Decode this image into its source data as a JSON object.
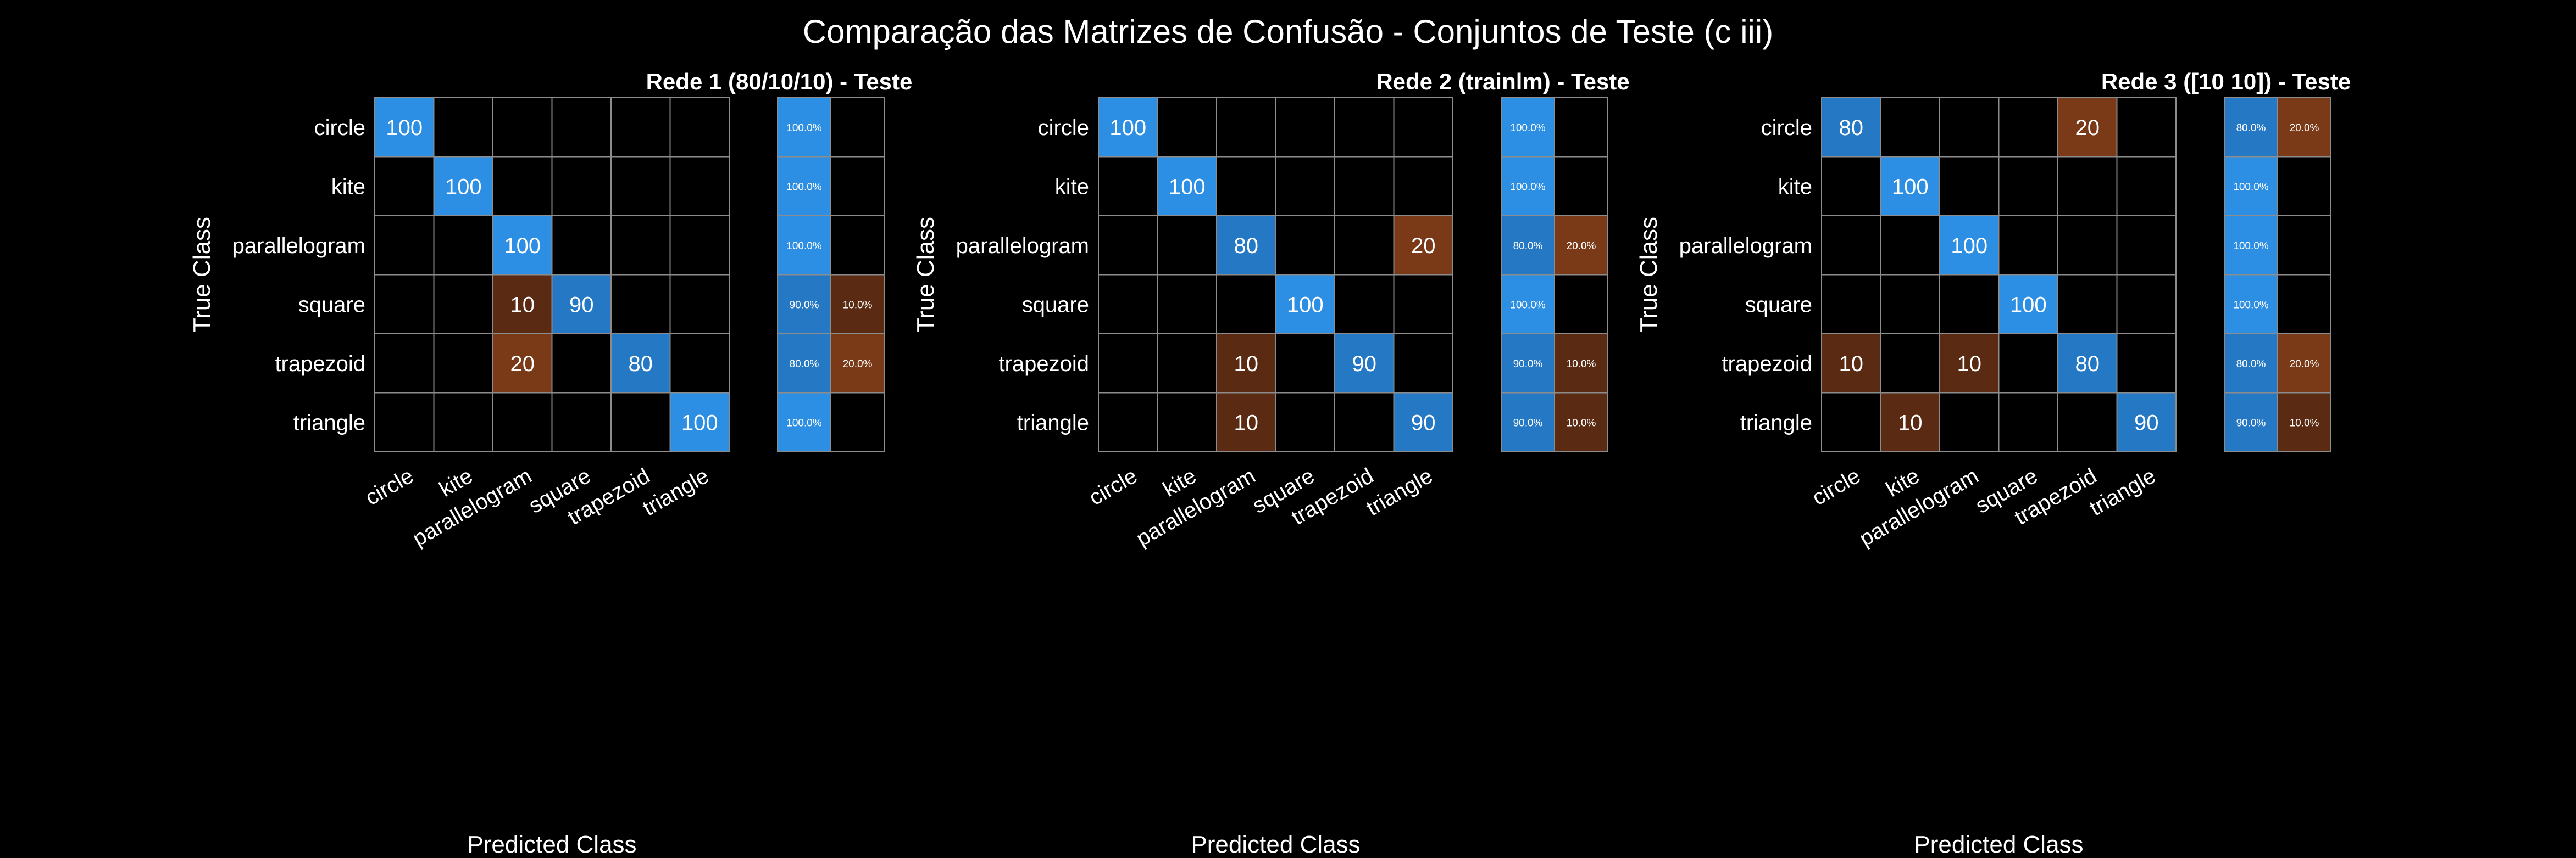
{
  "figure": {
    "title": "Comparação das Matrizes de Confusão - Conjuntos de Teste (c iii)"
  },
  "colors": {
    "background": "#000000",
    "text": "#ffffff",
    "grid": "#8c8c8c",
    "correct_light": "#2d8fe3",
    "correct_mid": "#2478c4",
    "error_dark": "#5a2a12",
    "error_mid": "#7a3a18"
  },
  "chart_data": [
    {
      "type": "heatmap",
      "title": "Rede 1 (80/10/10) - Teste",
      "xlabel": "Predicted Class",
      "ylabel": "True Class",
      "classes": [
        "circle",
        "kite",
        "parallelogram",
        "square",
        "trapezoid",
        "triangle"
      ],
      "matrix": [
        [
          100,
          0,
          0,
          0,
          0,
          0
        ],
        [
          0,
          100,
          0,
          0,
          0,
          0
        ],
        [
          0,
          0,
          100,
          0,
          0,
          0
        ],
        [
          0,
          0,
          10,
          90,
          0,
          0
        ],
        [
          0,
          0,
          20,
          0,
          80,
          0
        ],
        [
          0,
          0,
          0,
          0,
          0,
          100
        ]
      ],
      "row_summary": [
        [
          "100.0%",
          ""
        ],
        [
          "100.0%",
          ""
        ],
        [
          "100.0%",
          ""
        ],
        [
          "90.0%",
          "10.0%"
        ],
        [
          "80.0%",
          "20.0%"
        ],
        [
          "100.0%",
          ""
        ]
      ]
    },
    {
      "type": "heatmap",
      "title": "Rede 2 (trainlm) - Teste",
      "xlabel": "Predicted Class",
      "ylabel": "True Class",
      "classes": [
        "circle",
        "kite",
        "parallelogram",
        "square",
        "trapezoid",
        "triangle"
      ],
      "matrix": [
        [
          100,
          0,
          0,
          0,
          0,
          0
        ],
        [
          0,
          100,
          0,
          0,
          0,
          0
        ],
        [
          0,
          0,
          80,
          0,
          0,
          20
        ],
        [
          0,
          0,
          0,
          100,
          0,
          0
        ],
        [
          0,
          0,
          10,
          0,
          90,
          0
        ],
        [
          0,
          0,
          10,
          0,
          0,
          90
        ]
      ],
      "row_summary": [
        [
          "100.0%",
          ""
        ],
        [
          "100.0%",
          ""
        ],
        [
          "80.0%",
          "20.0%"
        ],
        [
          "100.0%",
          ""
        ],
        [
          "90.0%",
          "10.0%"
        ],
        [
          "90.0%",
          "10.0%"
        ]
      ]
    },
    {
      "type": "heatmap",
      "title": "Rede 3 ([10 10]) - Teste",
      "xlabel": "Predicted Class",
      "ylabel": "True Class",
      "classes": [
        "circle",
        "kite",
        "parallelogram",
        "square",
        "trapezoid",
        "triangle"
      ],
      "matrix": [
        [
          80,
          0,
          0,
          0,
          20,
          0
        ],
        [
          0,
          100,
          0,
          0,
          0,
          0
        ],
        [
          0,
          0,
          100,
          0,
          0,
          0
        ],
        [
          0,
          0,
          0,
          100,
          0,
          0
        ],
        [
          10,
          0,
          10,
          0,
          80,
          0
        ],
        [
          0,
          10,
          0,
          0,
          0,
          90
        ]
      ],
      "row_summary": [
        [
          "80.0%",
          "20.0%"
        ],
        [
          "100.0%",
          ""
        ],
        [
          "100.0%",
          ""
        ],
        [
          "100.0%",
          ""
        ],
        [
          "80.0%",
          "20.0%"
        ],
        [
          "90.0%",
          "10.0%"
        ]
      ]
    }
  ]
}
